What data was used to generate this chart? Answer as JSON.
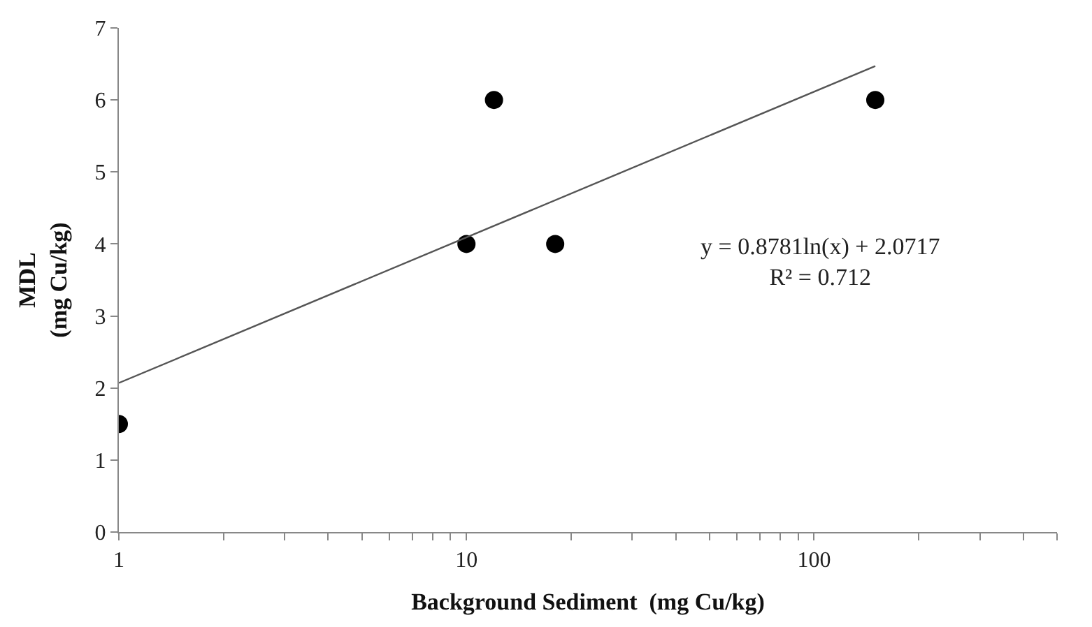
{
  "chart_data": {
    "type": "scatter",
    "xlabel": "Background Sediment  (mg Cu/kg)",
    "ylabel": "MDL\n(mg Cu/kg)",
    "log": "x",
    "xlim": [
      1,
      500
    ],
    "ylim": [
      0,
      7
    ],
    "xticks": [
      1,
      {
        "value": 2,
        "label": null
      },
      {
        "value": 3,
        "label": null
      },
      {
        "value": 4,
        "label": null
      },
      {
        "value": 5,
        "label": null
      },
      {
        "value": 6,
        "label": null
      },
      {
        "value": 7,
        "label": null
      },
      {
        "value": 8,
        "label": null
      },
      {
        "value": 9,
        "label": null
      },
      10,
      {
        "value": 20,
        "label": null
      },
      {
        "value": 30,
        "label": null
      },
      {
        "value": 40,
        "label": null
      },
      {
        "value": 50,
        "label": null
      },
      {
        "value": 60,
        "label": null
      },
      {
        "value": 70,
        "label": null
      },
      {
        "value": 80,
        "label": null
      },
      {
        "value": 90,
        "label": null
      },
      100,
      {
        "value": 200,
        "label": null
      },
      {
        "value": 300,
        "label": null
      },
      {
        "value": 400,
        "label": null
      },
      {
        "value": 500,
        "label": null
      }
    ],
    "yticks": [
      0,
      1,
      2,
      3,
      4,
      5,
      6,
      7
    ],
    "series": [
      {
        "color": "#000000",
        "marker": "circle",
        "x": [
          1,
          10,
          12,
          18,
          150
        ],
        "values": [
          1.5,
          4,
          6,
          4,
          6
        ]
      },
      {
        "type": "line",
        "color": "#555555",
        "marker": "none",
        "line_style": "solid",
        "x": [
          1,
          150
        ],
        "values": [
          2.07,
          6.47
        ]
      }
    ],
    "annotations": [
      "y = 0.8781ln(x) + 2.0717\nR² = 0.712"
    ]
  }
}
